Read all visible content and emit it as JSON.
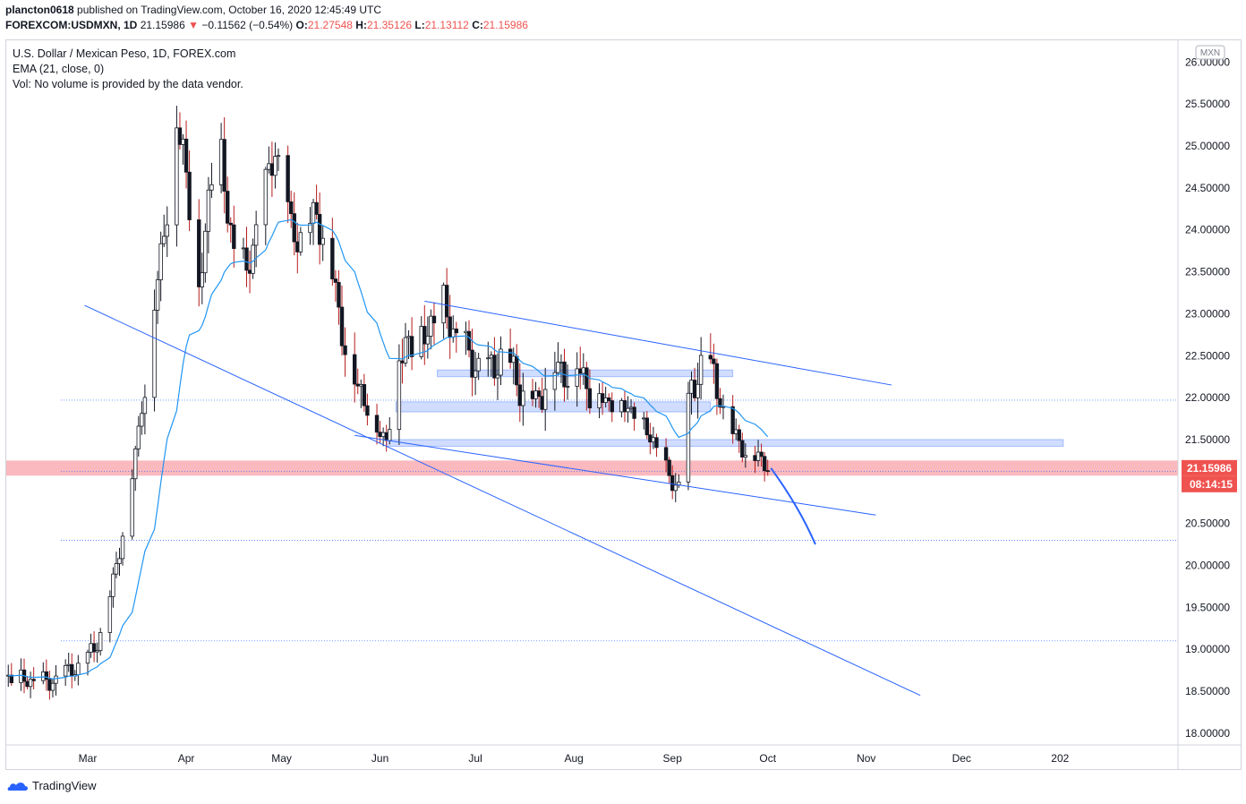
{
  "header": {
    "user": "plancton0618",
    "published_text": "published on TradingView.com, October 16, 2020 12:45:49 UTC",
    "symbol": "FOREXCOM:USDMXN, 1D",
    "last": "21.15986",
    "change_arrow": "▼",
    "change": "−0.11562 (−0.54%)",
    "o_label": "O:",
    "o_val": "21.27548",
    "h_label": "H:",
    "h_val": "21.35126",
    "l_label": "L:",
    "l_val": "21.13112",
    "c_label": "C:",
    "c_val": "21.15986"
  },
  "legend": {
    "title": "U.S. Dollar / Mexican Peso, 1D, FOREX.com",
    "ema": "EMA (21, close, 0)",
    "vol": "Vol: No volume is provided by the data vendor."
  },
  "footer": {
    "brand": "TradingView"
  },
  "chart_data": {
    "type": "candlestick",
    "currency_badge": "MXN",
    "price_label": "21.15986",
    "countdown_label": "08:14:15",
    "y_ticks": [
      "26.00000",
      "25.50000",
      "25.00000",
      "24.50000",
      "24.00000",
      "23.50000",
      "23.00000",
      "22.50000",
      "22.00000",
      "21.50000",
      "21.00000",
      "20.50000",
      "20.00000",
      "19.50000",
      "19.00000",
      "18.50000",
      "18.00000"
    ],
    "y_tick_values": [
      26,
      25.5,
      25,
      24.5,
      24,
      23.5,
      23,
      22.5,
      22,
      21.5,
      21,
      20.5,
      20,
      19.5,
      19,
      18.5,
      18
    ],
    "x_ticks": [
      "Mar",
      "Apr",
      "May",
      "Jun",
      "Jul",
      "Aug",
      "Sep",
      "Oct",
      "Nov",
      "Dec",
      "202"
    ],
    "x_tick_days": [
      0,
      31,
      61,
      92,
      122,
      153,
      184,
      214,
      245,
      275,
      306
    ],
    "ylim": [
      17.86,
      26.26
    ],
    "xlim": [
      -25,
      307
    ],
    "anchors": [
      [
        -25,
        18.65
      ],
      [
        -12,
        18.6
      ],
      [
        -3,
        18.8
      ],
      [
        2,
        19.0
      ],
      [
        5,
        19.3
      ],
      [
        8,
        19.8
      ],
      [
        10,
        20.2
      ],
      [
        13,
        20.8
      ],
      [
        16,
        21.6
      ],
      [
        19,
        22.5
      ],
      [
        22,
        23.4
      ],
      [
        25,
        24.3
      ],
      [
        28,
        25.2
      ],
      [
        30,
        25.0
      ],
      [
        33,
        24.0
      ],
      [
        35,
        23.2
      ],
      [
        38,
        24.4
      ],
      [
        41,
        25.2
      ],
      [
        44,
        24.2
      ],
      [
        47,
        23.6
      ],
      [
        50,
        23.5
      ],
      [
        53,
        24.0
      ],
      [
        56,
        24.5
      ],
      [
        59,
        25.0
      ],
      [
        61,
        24.6
      ],
      [
        64,
        24.0
      ],
      [
        68,
        23.9
      ],
      [
        72,
        24.2
      ],
      [
        76,
        23.7
      ],
      [
        79,
        23.0
      ],
      [
        82,
        22.5
      ],
      [
        85,
        22.1
      ],
      [
        88,
        21.9
      ],
      [
        91,
        21.6
      ],
      [
        94,
        21.5
      ],
      [
        97,
        22.2
      ],
      [
        100,
        22.7
      ],
      [
        104,
        22.6
      ],
      [
        108,
        22.9
      ],
      [
        112,
        23.1
      ],
      [
        115,
        22.8
      ],
      [
        118,
        22.6
      ],
      [
        122,
        22.4
      ],
      [
        126,
        22.3
      ],
      [
        130,
        22.5
      ],
      [
        134,
        22.3
      ],
      [
        138,
        22.0
      ],
      [
        142,
        22.0
      ],
      [
        146,
        22.4
      ],
      [
        150,
        22.3
      ],
      [
        154,
        22.4
      ],
      [
        158,
        22.1
      ],
      [
        162,
        22.0
      ],
      [
        166,
        21.9
      ],
      [
        170,
        21.9
      ],
      [
        174,
        21.7
      ],
      [
        178,
        21.5
      ],
      [
        181,
        21.2
      ],
      [
        184,
        21.0
      ],
      [
        186,
        20.95
      ],
      [
        188,
        21.8
      ],
      [
        190,
        22.1
      ],
      [
        193,
        22.4
      ],
      [
        196,
        22.35
      ],
      [
        199,
        22.0
      ],
      [
        202,
        21.6
      ],
      [
        205,
        21.5
      ],
      [
        208,
        21.25
      ],
      [
        211,
        21.3
      ],
      [
        214,
        21.2
      ],
      [
        215,
        21.16
      ]
    ],
    "overlays": {
      "upper_channel": [
        [
          106,
          23.15
        ],
        [
          253,
          22.15
        ]
      ],
      "lower_channel": [
        [
          84,
          21.55
        ],
        [
          248,
          20.6
        ]
      ],
      "steep_trendline": [
        [
          -1,
          23.1
        ],
        [
          262,
          18.45
        ]
      ],
      "forecast_curve": [
        [
          215,
          21.16
        ],
        [
          220,
          20.9
        ],
        [
          225,
          20.6
        ],
        [
          229,
          20.25
        ]
      ],
      "red_zone": [
        21.07,
        21.25
      ],
      "blue_zones": [
        [
          [
            110,
            22.25
          ],
          [
            203,
            22.33
          ]
        ],
        [
          [
            97,
            21.83
          ],
          [
            196,
            21.95
          ]
        ],
        [
          [
            94,
            21.42
          ],
          [
            307,
            21.5
          ]
        ]
      ],
      "dotted_levels": [
        21.97,
        21.12,
        20.3,
        19.1
      ]
    }
  }
}
